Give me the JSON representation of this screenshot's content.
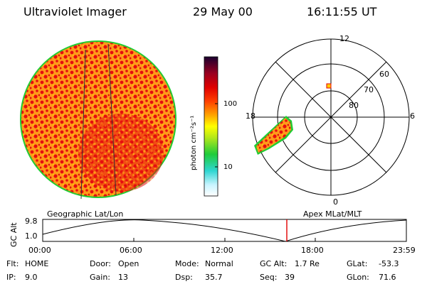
{
  "header": {
    "instrument": "Ultraviolet Imager",
    "date": "29 May 00",
    "time": "16:11:55 UT"
  },
  "colorbar": {
    "unit_label": "photon cm⁻²s⁻¹",
    "ticks": [
      "100",
      "10"
    ]
  },
  "polar_plot": {
    "mlt_labels": [
      "12",
      "6",
      "0",
      "18"
    ],
    "mlat_labels": [
      "60",
      "70",
      "80"
    ]
  },
  "altitude_plot": {
    "y_axis_label": "GC Alt",
    "y_ticks": [
      "9.8",
      "1.0"
    ],
    "left_title": "Geographic Lat/Lon",
    "right_title": "Apex MLat/MLT",
    "x_ticks": [
      "00:00",
      "06:00",
      "12:00",
      "18:00",
      "23:59"
    ],
    "marker_color": "#e00000"
  },
  "status": {
    "row1": [
      {
        "label": "Flt:",
        "value": "HOME"
      },
      {
        "label": "Door:",
        "value": "Open"
      },
      {
        "label": "Mode:",
        "value": "Normal"
      },
      {
        "label": "GC Alt:",
        "value": "1.7 Re"
      },
      {
        "label": "GLat:",
        "value": "-53.3"
      }
    ],
    "row2": [
      {
        "label": "IP:",
        "value": "9.0"
      },
      {
        "label": "Gain:",
        "value": "13"
      },
      {
        "label": "Dsp:",
        "value": "35.7"
      },
      {
        "label": "Seq:",
        "value": "39"
      },
      {
        "label": "GLon:",
        "value": "71.6"
      }
    ]
  }
}
